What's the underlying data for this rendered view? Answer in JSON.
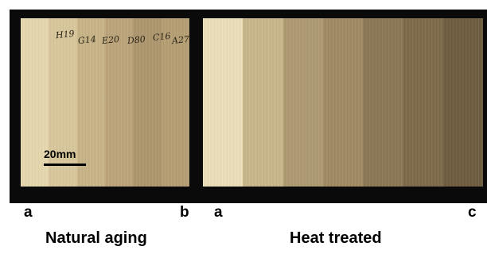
{
  "left_panel": {
    "strip_colors": [
      "#e6d8ae",
      "#d9c79c",
      "#c8b487",
      "#bca47b",
      "#ae976f",
      "#b59e74"
    ],
    "handwritten_labels": [
      "H19",
      "G14",
      "E20",
      "D80",
      "C16",
      "A27"
    ],
    "scale_label": "20mm"
  },
  "right_panel": {
    "strip_colors": [
      "#ecdfb9",
      "#c9b68c",
      "#ae9a72",
      "#a08a62",
      "#8c7855",
      "#7d6a4a",
      "#6e5d40"
    ]
  },
  "labels": {
    "left_start": "a",
    "left_end": "b",
    "right_start": "a",
    "right_end": "c"
  },
  "captions": {
    "left": "Natural aging",
    "right": "Heat treated"
  }
}
